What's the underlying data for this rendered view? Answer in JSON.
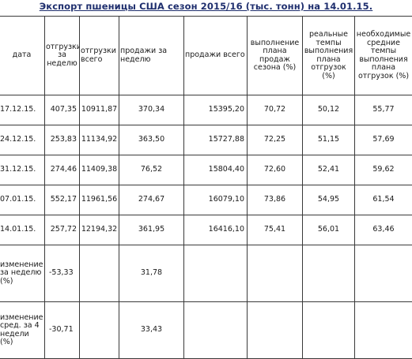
{
  "title": "Экспорт пшеницы США сезон 2015/16 (тыс. тонн) на 14.01.15.",
  "headers": {
    "date": "дата",
    "shipments_week": "отгрузки за неделю",
    "shipments_total": "отгрузки всего",
    "sales_week": "продажи за неделю",
    "sales_total": "продажи всего",
    "plan_sales": "выполнение плана продаж сезона (%)",
    "real_rate": "реальные темпы выполнения плана отгрузок (%)",
    "needed_rate": "необходимые средние темпы выполнения плана отгрузок (%)"
  },
  "rows": [
    {
      "date": "17.12.15.",
      "ship_week": "407,35",
      "ship_total": "10911,87",
      "sales_week": "370,34",
      "sales_total": "15395,20",
      "plan": "70,72",
      "real": "50,12",
      "needed": "55,77"
    },
    {
      "date": "24.12.15.",
      "ship_week": "253,83",
      "ship_total": "11134,92",
      "sales_week": "363,50",
      "sales_total": "15727,88",
      "plan": "72,25",
      "real": "51,15",
      "needed": "57,69"
    },
    {
      "date": "31.12.15.",
      "ship_week": "274,46",
      "ship_total": "11409,38",
      "sales_week": "76,52",
      "sales_total": "15804,40",
      "plan": "72,60",
      "real": "52,41",
      "needed": "59,62"
    },
    {
      "date": "07.01.15.",
      "ship_week": "552,17",
      "ship_total": "11961,56",
      "sales_week": "274,67",
      "sales_total": "16079,10",
      "plan": "73,86",
      "real": "54,95",
      "needed": "61,54"
    },
    {
      "date": "14.01.15.",
      "ship_week": "257,72",
      "ship_total": "12194,32",
      "sales_week": "361,95",
      "sales_total": "16416,10",
      "plan": "75,41",
      "real": "56,01",
      "needed": "63,46"
    }
  ],
  "change_week": {
    "label": "изменение за неделю (%)",
    "ship_week": "-53,33",
    "sales_week": "31,78"
  },
  "change_4w": {
    "label": "изменение сред. за 4 недели (%)",
    "ship_week": "-30,71",
    "sales_week": "33,43"
  }
}
